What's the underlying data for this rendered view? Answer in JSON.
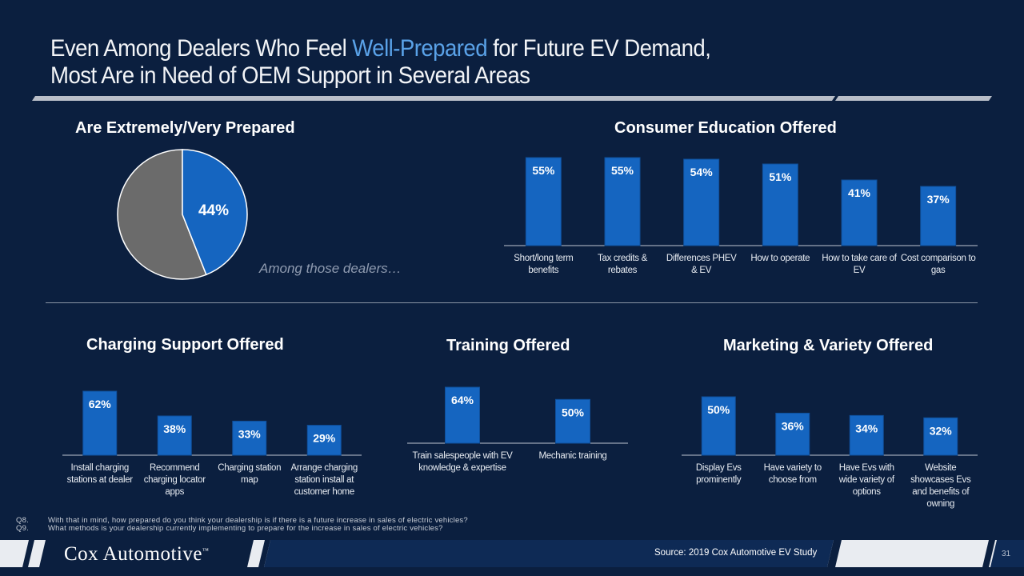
{
  "title": {
    "part1": "Even Among Dealers Who Feel ",
    "highlight": "Well-Prepared",
    "part2": " for Future EV Demand,",
    "line2": "Most Are in Need of OEM Support in Several Areas"
  },
  "colors": {
    "background": "#0b1f3f",
    "bar": "#1565c0",
    "pie_main": "#1565c0",
    "pie_rest": "#6b6b6b",
    "highlight": "#5aa2e8"
  },
  "among_text": "Among those dealers…",
  "chart_data": [
    {
      "id": "prepared",
      "type": "pie",
      "title": "Are Extremely/Very Prepared",
      "values": [
        44,
        56
      ],
      "labels": [
        "44%",
        ""
      ]
    },
    {
      "id": "consumer",
      "type": "bar",
      "title": "Consumer Education Offered",
      "categories": [
        "Short/long term benefits",
        "Tax credits & rebates",
        "Differences PHEV & EV",
        "How to operate",
        "How to take care of EV",
        "Cost comparison to gas"
      ],
      "values": [
        55,
        55,
        54,
        51,
        41,
        37
      ],
      "labels": [
        "55%",
        "55%",
        "54%",
        "51%",
        "41%",
        "37%"
      ]
    },
    {
      "id": "charging",
      "type": "bar",
      "title": "Charging Support Offered",
      "categories": [
        "Install charging stations at dealer",
        "Recommend charging locator apps",
        "Charging station map",
        "Arrange charging station install at customer home"
      ],
      "values": [
        62,
        38,
        33,
        29
      ],
      "labels": [
        "62%",
        "38%",
        "33%",
        "29%"
      ]
    },
    {
      "id": "training",
      "type": "bar",
      "title": "Training Offered",
      "categories": [
        "Train salespeople with EV knowledge & expertise",
        "Mechanic training"
      ],
      "values": [
        64,
        50
      ],
      "labels": [
        "64%",
        "50%"
      ]
    },
    {
      "id": "marketing",
      "type": "bar",
      "title": "Marketing & Variety Offered",
      "categories": [
        "Display Evs prominently",
        "Have variety to choose from",
        "Have Evs with wide variety of options",
        "Website showcases Evs and benefits of owning"
      ],
      "values": [
        50,
        36,
        34,
        32
      ],
      "labels": [
        "50%",
        "36%",
        "34%",
        "32%"
      ]
    }
  ],
  "footnotes": [
    {
      "num": "Q8.",
      "text": "With that in mind, how prepared do you think your dealership is if there is a future increase in sales of electric vehicles?"
    },
    {
      "num": "Q9.",
      "text": "What methods is your dealership currently implementing to prepare for the increase in sales of electric vehicles?"
    }
  ],
  "footer": {
    "logo": "Cox Automotive",
    "logo_tm": "™",
    "source": "Source: 2019 Cox Automotive EV Study",
    "page": "31"
  }
}
